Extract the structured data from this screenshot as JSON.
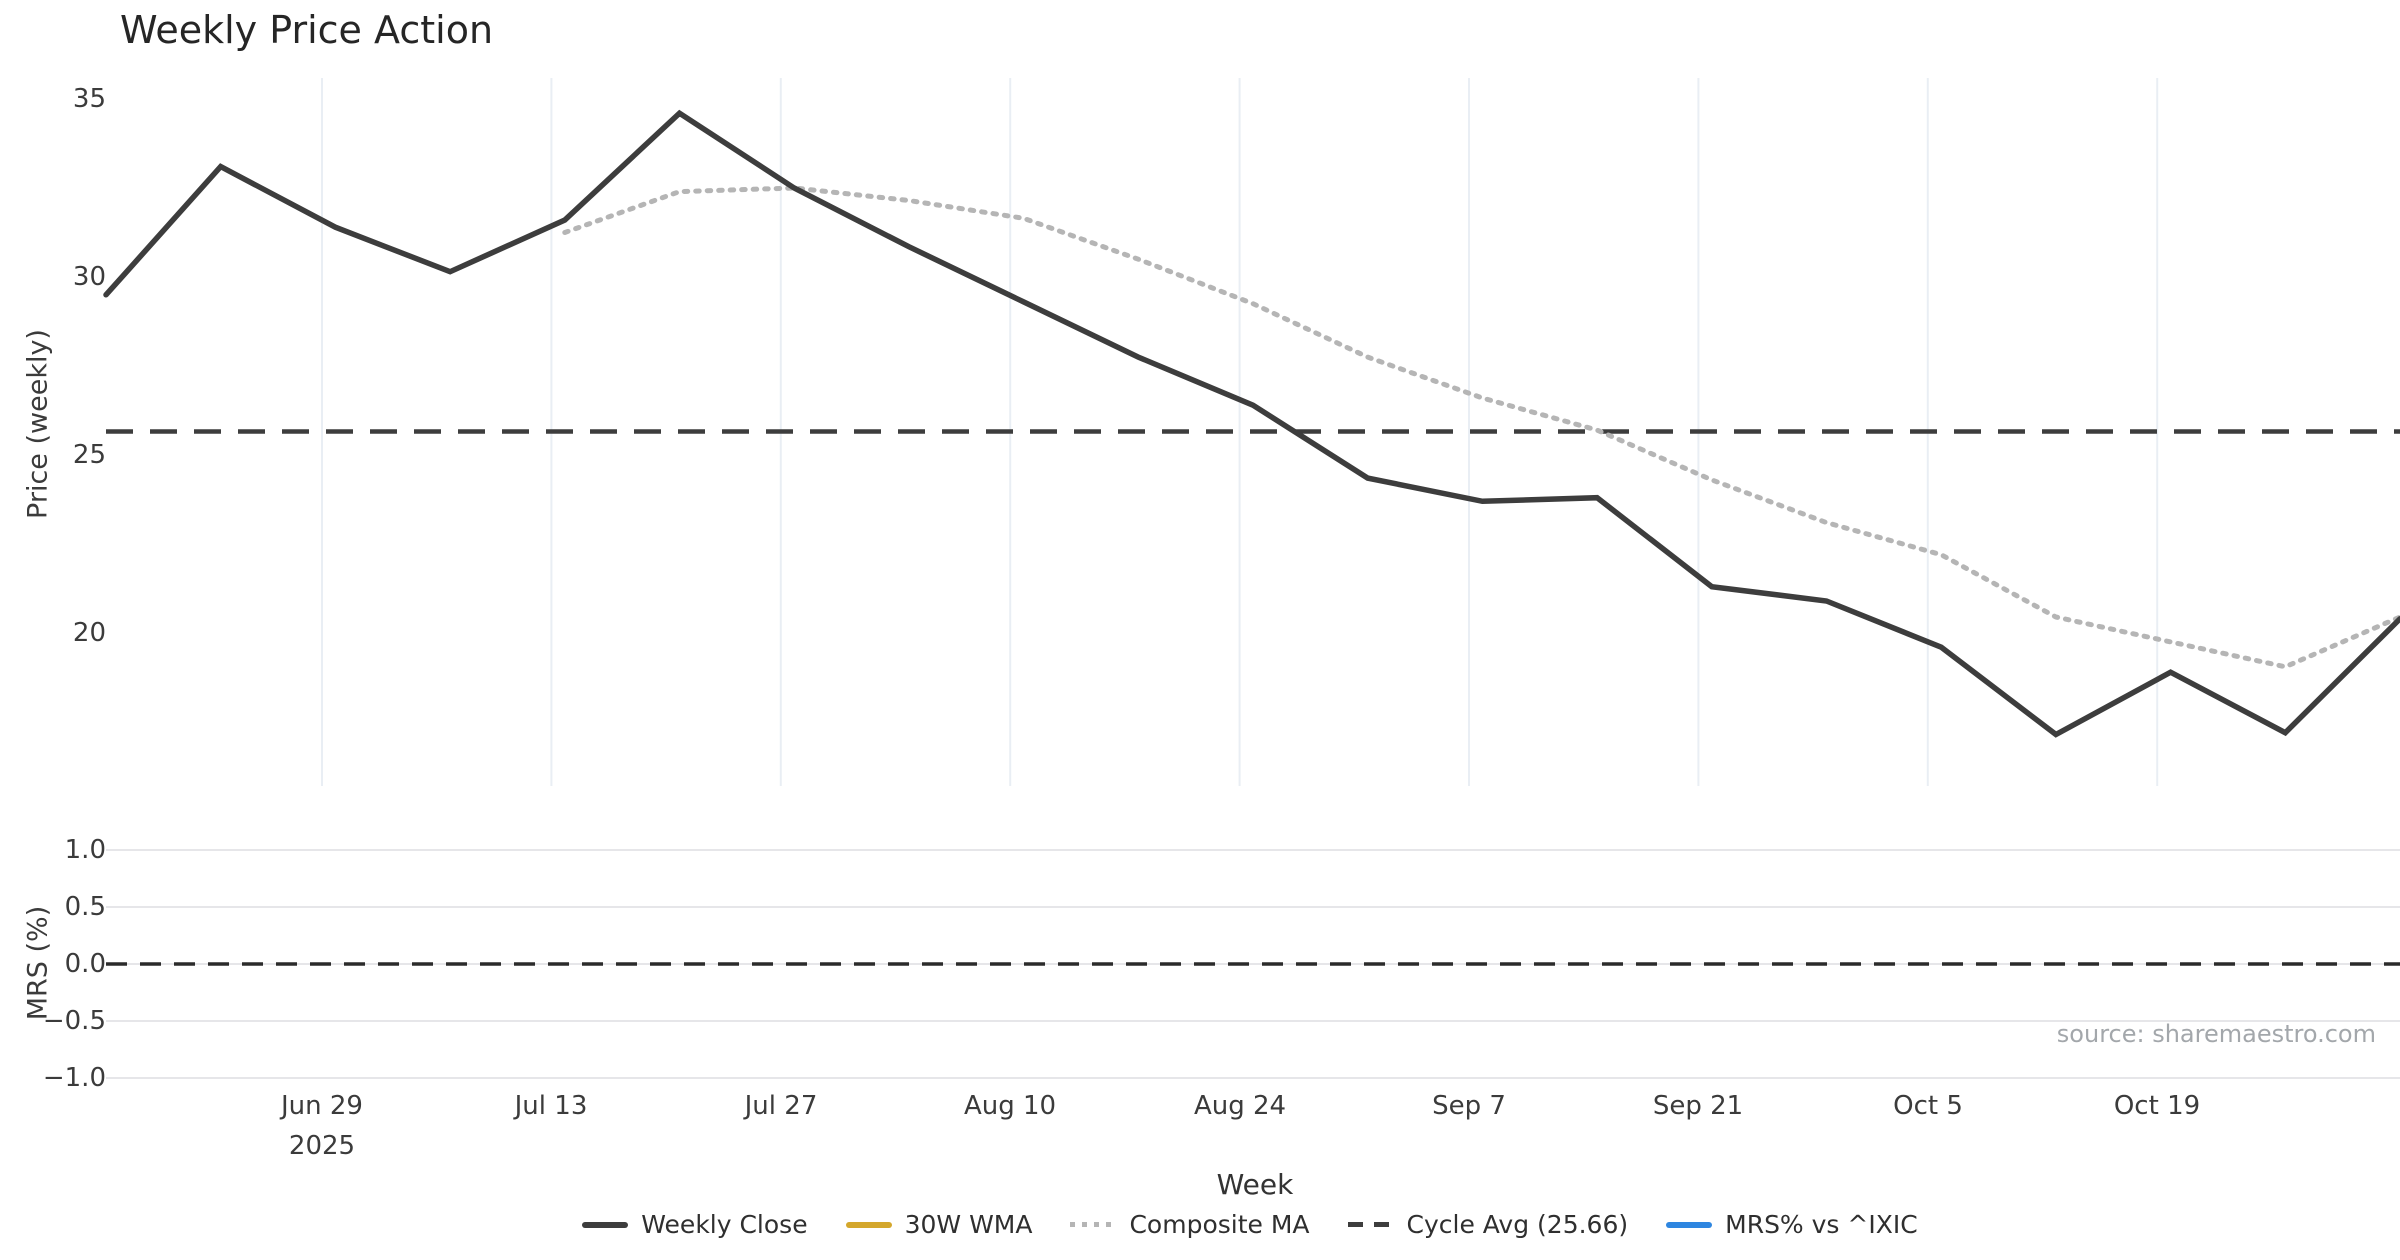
{
  "title": "Weekly Price Action",
  "source": "source: sharemaestro.com",
  "price_axis": {
    "label": "Price (weekly)",
    "ticks": [
      "35",
      "30",
      "25",
      "20"
    ]
  },
  "mrs_axis": {
    "label": "MRS (%)",
    "ticks": [
      "1.0",
      "0.5",
      "0.0",
      "−0.5",
      "−1.0"
    ]
  },
  "x_axis": {
    "label": "Week",
    "ticks": [
      "Jun 29",
      "Jul 13",
      "Jul 27",
      "Aug 10",
      "Aug 24",
      "Sep 7",
      "Sep 21",
      "Oct 5",
      "Oct 19"
    ],
    "year": "2025"
  },
  "legend": [
    {
      "label": "Weekly Close",
      "color": "#3d3d3d",
      "style": "solid"
    },
    {
      "label": "30W WMA",
      "color": "#d4a72c",
      "style": "solid"
    },
    {
      "label": "Composite MA",
      "color": "#b5b5b5",
      "style": "dotted"
    },
    {
      "label": "Cycle Avg (25.66)",
      "color": "#3d3d3d",
      "style": "dashed"
    },
    {
      "label": "MRS% vs ^IXIC",
      "color": "#2e86e0",
      "style": "solid"
    }
  ],
  "colors": {
    "weekly_close": "#3d3d3d",
    "composite_ma": "#b5b5b5",
    "cycle_avg": "#3d3d3d",
    "mrs_zero_dash": "#2b2b2b",
    "vertical_grid": "#e9eef4",
    "horizontal_grid": "#dddde2"
  },
  "chart_data": {
    "type": "line",
    "title": "Weekly Price Action",
    "xlabel": "Week",
    "x_tick_labels": [
      "Jun 29 2025",
      "Jul 13",
      "Jul 27",
      "Aug 10",
      "Aug 24",
      "Sep 7",
      "Sep 21",
      "Oct 5",
      "Oct 19"
    ],
    "weeks": [
      "Jun 15",
      "Jun 22",
      "Jun 29",
      "Jul 6",
      "Jul 13",
      "Jul 20",
      "Jul 27",
      "Aug 3",
      "Aug 10",
      "Aug 17",
      "Aug 24",
      "Aug 31",
      "Sep 7",
      "Sep 14",
      "Sep 21",
      "Sep 28",
      "Oct 5",
      "Oct 12",
      "Oct 19",
      "Oct 26",
      "Nov 2"
    ],
    "panels": [
      {
        "name": "price",
        "ylabel": "Price (weekly)",
        "yticks": [
          20,
          25,
          30,
          35
        ],
        "ylim": [
          15.8,
          36.1
        ],
        "grid": "vertical-only",
        "series": [
          {
            "name": "Weekly Close",
            "style": "solid",
            "values": [
              29.5,
              33.1,
              31.4,
              30.15,
              31.6,
              34.6,
              32.5,
              30.85,
              29.3,
              27.75,
              26.4,
              24.35,
              23.7,
              23.8,
              21.3,
              20.9,
              19.6,
              17.15,
              18.9,
              17.2,
              20.4
            ]
          },
          {
            "name": "30W WMA",
            "style": "solid",
            "values": []
          },
          {
            "name": "Composite MA",
            "style": "dotted",
            "values": [
              null,
              null,
              null,
              null,
              31.25,
              32.4,
              32.5,
              32.15,
              31.65,
              30.5,
              29.25,
              27.75,
              26.6,
              25.7,
              24.3,
              23.1,
              22.2,
              20.45,
              19.75,
              19.05,
              20.45
            ]
          },
          {
            "name": "Cycle Avg",
            "style": "dashed-horizontal",
            "value": 25.66
          }
        ]
      },
      {
        "name": "mrs",
        "ylabel": "MRS (%)",
        "yticks": [
          -1.0,
          -0.5,
          0.0,
          0.5,
          1.0
        ],
        "ylim": [
          -1.25,
          1.25
        ],
        "grid": "horizontal-only",
        "series": [
          {
            "name": "MRS% vs ^IXIC",
            "style": "solid",
            "values": []
          },
          {
            "name": "Zero line",
            "style": "dashed-horizontal",
            "value": 0.0
          }
        ]
      }
    ],
    "legend_entries": [
      "Weekly Close",
      "30W WMA",
      "Composite MA",
      "Cycle Avg (25.66)",
      "MRS% vs ^IXIC"
    ],
    "legend_position": "bottom-center",
    "source": "source: sharemaestro.com"
  }
}
